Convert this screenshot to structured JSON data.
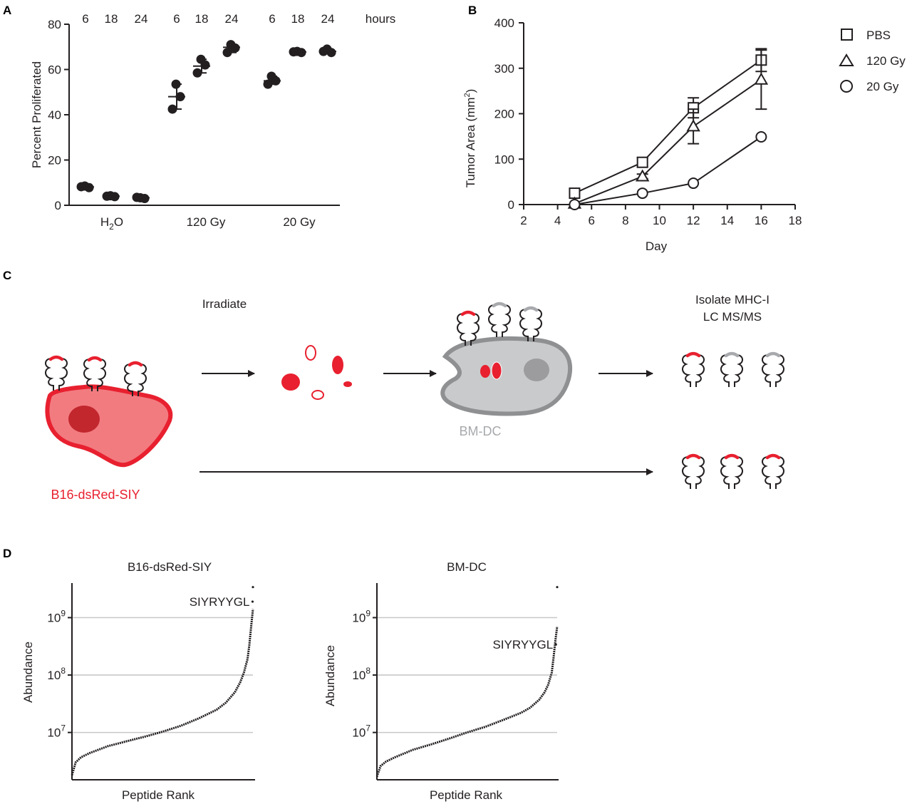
{
  "panels": {
    "a": {
      "letter": "A"
    },
    "b": {
      "letter": "B"
    },
    "c": {
      "letter": "C"
    },
    "d": {
      "letter": "D"
    }
  },
  "chart_data": [
    {
      "panel": "A",
      "type": "scatter",
      "ylabel": "Percent Proliferated",
      "ylim": [
        0,
        80
      ],
      "yticks": [
        "0",
        "20",
        "40",
        "60",
        "80"
      ],
      "group_labels": [
        "H",
        "120 Gy",
        "20 Gy"
      ],
      "group_label_subscript": {
        "index": 0,
        "base": "H",
        "sub": "2",
        "tail": "O"
      },
      "timepoint_labels": [
        "6",
        "18",
        "24"
      ],
      "time_unit": "hours",
      "groups": [
        {
          "name": "H2O",
          "points": [
            {
              "time": "6",
              "values": [
                8.5,
                7.8,
                8.2
              ],
              "mean": 8.1
            },
            {
              "time": "18",
              "values": [
                4.2,
                3.8,
                4.0
              ],
              "mean": 4.0
            },
            {
              "time": "24",
              "values": [
                3.3,
                3.0,
                3.5
              ],
              "mean": 3.3
            }
          ]
        },
        {
          "name": "120 Gy",
          "points": [
            {
              "time": "6",
              "values": [
                53.5,
                48.0,
                42.5
              ],
              "mean": 48.0
            },
            {
              "time": "18",
              "values": [
                64.5,
                62.0,
                58.5
              ],
              "mean": 61.5
            },
            {
              "time": "24",
              "values": [
                71.0,
                69.5,
                67.5
              ],
              "mean": 69.8
            }
          ]
        },
        {
          "name": "20 Gy",
          "points": [
            {
              "time": "6",
              "values": [
                57.0,
                55.0,
                53.5
              ],
              "mean": 55.0
            },
            {
              "time": "18",
              "values": [
                68.0,
                67.5,
                67.8
              ],
              "mean": 67.8
            },
            {
              "time": "24",
              "values": [
                69.0,
                67.5,
                68.0
              ],
              "mean": 68.0
            }
          ]
        }
      ]
    },
    {
      "panel": "B",
      "type": "line",
      "xlabel": "Day",
      "ylabel": "Tumor Area (mm",
      "ylabel_superscript": "2",
      "ylabel_tail": ")",
      "xlim": [
        2,
        18
      ],
      "ylim": [
        0,
        400
      ],
      "xticks": [
        "2",
        "4",
        "6",
        "8",
        "10",
        "12",
        "14",
        "16",
        "18"
      ],
      "yticks": [
        "0",
        "100",
        "200",
        "300",
        "400"
      ],
      "legend_position": "top-right",
      "series": [
        {
          "name": "PBS",
          "marker": "square",
          "x": [
            5,
            9,
            12,
            16
          ],
          "y": [
            25,
            93,
            213,
            318
          ],
          "err": [
            0,
            10,
            22,
            25
          ]
        },
        {
          "name": "120 Gy",
          "marker": "triangle",
          "x": [
            5,
            9,
            12,
            16
          ],
          "y": [
            2,
            62,
            172,
            275
          ],
          "err": [
            0,
            5,
            38,
            65
          ]
        },
        {
          "name": "20 Gy",
          "marker": "circle",
          "x": [
            5,
            9,
            12,
            16
          ],
          "y": [
            0,
            25,
            47,
            149
          ],
          "err": [
            0,
            0,
            0,
            0
          ]
        }
      ]
    },
    {
      "panel": "D1",
      "type": "line",
      "title": "B16-dsRed-SIY",
      "xlabel": "Peptide Rank",
      "ylabel": "Abundance",
      "yscale": "log",
      "ylim": [
        1500000,
        4000000000
      ],
      "yticks": [
        {
          "base": "10",
          "exp": "7",
          "value": 10000000
        },
        {
          "base": "10",
          "exp": "8",
          "value": 100000000
        },
        {
          "base": "10",
          "exp": "9",
          "value": 1000000000
        }
      ],
      "annotation": {
        "text": "SIYRYYGL",
        "rank_fraction": 0.99,
        "value": 1900000000
      },
      "curve_rank_fraction": [
        0,
        0.02,
        0.05,
        0.1,
        0.2,
        0.3,
        0.4,
        0.5,
        0.6,
        0.7,
        0.8,
        0.85,
        0.9,
        0.93,
        0.95,
        0.97,
        0.98,
        0.99,
        1.0
      ],
      "curve_abundance": [
        1800000,
        3000000,
        3700000,
        4400000,
        5800000,
        7000000,
        8400000,
        10300000,
        13000000,
        17500000,
        25000000,
        33000000,
        50000000,
        75000000,
        110000000,
        190000000,
        330000000,
        700000000,
        1400000000
      ]
    },
    {
      "panel": "D2",
      "type": "line",
      "title": "BM-DC",
      "xlabel": "Peptide Rank",
      "ylabel": "Abundance",
      "yscale": "log",
      "ylim": [
        1500000,
        4000000000
      ],
      "yticks": [
        {
          "base": "10",
          "exp": "7",
          "value": 10000000
        },
        {
          "base": "10",
          "exp": "8",
          "value": 100000000
        },
        {
          "base": "10",
          "exp": "9",
          "value": 1000000000
        }
      ],
      "annotation": {
        "text": "SIYRYYGL",
        "rank_fraction": 0.985,
        "value": 340000000
      },
      "curve_rank_fraction": [
        0,
        0.02,
        0.05,
        0.1,
        0.2,
        0.3,
        0.4,
        0.5,
        0.6,
        0.7,
        0.8,
        0.85,
        0.9,
        0.93,
        0.95,
        0.97,
        0.98,
        0.99,
        1.0
      ],
      "curve_abundance": [
        1700000,
        2600000,
        3100000,
        3700000,
        5000000,
        6200000,
        7800000,
        10000000,
        12500000,
        16500000,
        22000000,
        27000000,
        37000000,
        50000000,
        68000000,
        110000000,
        200000000,
        400000000,
        700000000
      ]
    }
  ],
  "diagram": {
    "step_label_irradiate": "Irradiate",
    "step_label_isolate_line1": "Isolate MHC-I",
    "step_label_isolate_line2": "LC MS/MS",
    "tumor_cell_label": "B16-dsRed-SIY",
    "dc_label": "BM-DC",
    "colors": {
      "tumor_red": "#e8202f",
      "tumor_fill": "#f27b80",
      "tumor_nucleus": "#c1272d",
      "dc_fill": "#c9cacc",
      "dc_stroke": "#8f9092",
      "dc_nucleus": "#9c9c9e",
      "gray_peptide": "#a7a9ac",
      "ink": "#231f20"
    }
  }
}
